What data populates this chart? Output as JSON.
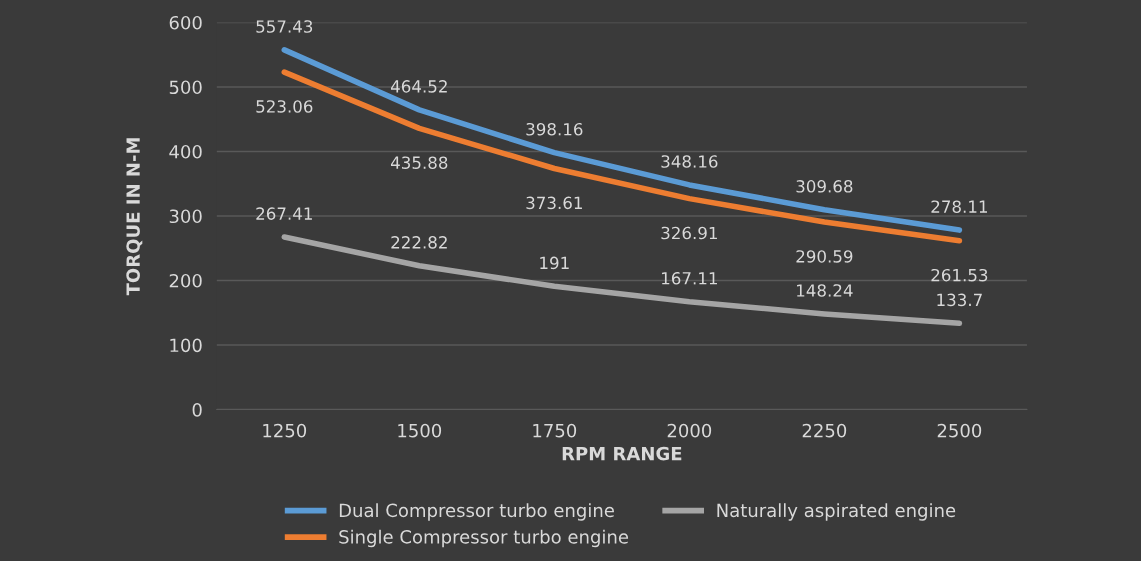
{
  "chart_data": {
    "type": "line",
    "xlabel": "RPM RANGE",
    "ylabel": "TORQUE IN N-M",
    "categories": [
      "1250",
      "1500",
      "1750",
      "2000",
      "2250",
      "2500"
    ],
    "series": [
      {
        "name": "Dual Compressor turbo engine",
        "color": "#5b9bd5",
        "values": [
          557.43,
          464.52,
          398.16,
          348.16,
          309.68,
          278.11
        ]
      },
      {
        "name": "Single Compressor turbo engine",
        "color": "#ed7d31",
        "values": [
          523.06,
          435.88,
          373.61,
          326.91,
          290.59,
          261.53
        ]
      },
      {
        "name": "Naturally aspirated engine",
        "color": "#a5a5a5",
        "values": [
          267.41,
          222.82,
          191,
          167.11,
          148.24,
          133.7
        ]
      }
    ],
    "ylim": [
      0,
      600
    ],
    "yticks": [
      0,
      100,
      200,
      300,
      400,
      500,
      600
    ],
    "grid": "y",
    "legend": "bottom",
    "data_labels": true,
    "marker": "none",
    "line_style": "solid"
  }
}
